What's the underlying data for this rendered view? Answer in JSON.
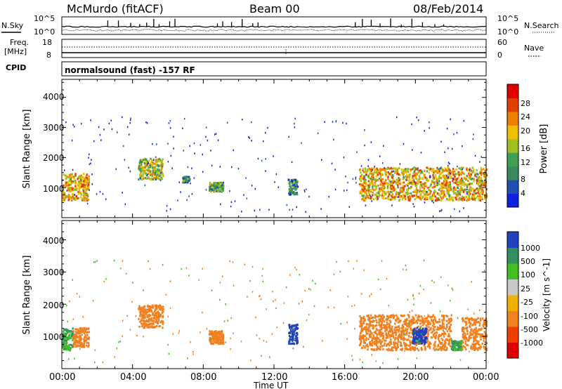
{
  "header": {
    "station": "McMurdo (fitACF)",
    "beam": "Beam 00",
    "date": "08/Feb/2014"
  },
  "noise_panel": {
    "left_label": "N.Sky",
    "right_label": "N.Search",
    "tick_top": "10^5",
    "tick_bottom": "10^0",
    "right_tick_top": "10^5",
    "right_tick_bottom": "10^0"
  },
  "freq_panel": {
    "left_label_1": "Freq.",
    "left_label_2": "[MHz]",
    "right_label": "Nave",
    "left_tick_top": "18",
    "left_tick_bottom": "8",
    "right_tick_top": "60",
    "right_tick_bottom": "0"
  },
  "cpid": {
    "label": "CPID",
    "text": "normalsound (fast) -157 RF"
  },
  "time_axis": {
    "title": "Time UT",
    "ticks": [
      "00:00",
      "04:00",
      "08:00",
      "12:00",
      "16:00",
      "20:00",
      "00:00"
    ]
  },
  "colors": {
    "power_scale": [
      "#1020e0",
      "#2050b0",
      "#3a8a60",
      "#40a050",
      "#a0c020",
      "#f0c000",
      "#f08000",
      "#e04000",
      "#e00000"
    ],
    "velocity_scale": [
      "#e00000",
      "#f04000",
      "#f08020",
      "#f0b000",
      "#c8c8c8",
      "#40c020",
      "#309060",
      "#2040c0"
    ]
  },
  "chart_data": [
    {
      "type": "heatmap",
      "panel": "power",
      "ylabel": "Slant Range [km]",
      "yticks": [
        "1000",
        "2000",
        "3000",
        "4000"
      ],
      "ylim": [
        0,
        4600
      ],
      "xlim_hours": [
        0,
        24
      ],
      "colorbar_label": "Power [dB]",
      "colorbar_ticks": [
        "4",
        "8",
        "12",
        "16",
        "20",
        "24",
        "28"
      ],
      "scatter_regions_approx": [
        {
          "t_start_hr": 0.0,
          "t_end_hr": 1.5,
          "range_km": [
            600,
            1500
          ],
          "level_dB": 20
        },
        {
          "t_start_hr": 4.3,
          "t_end_hr": 5.7,
          "range_km": [
            1300,
            2000
          ],
          "level_dB": 16
        },
        {
          "t_start_hr": 6.8,
          "t_end_hr": 7.2,
          "range_km": [
            1200,
            1400
          ],
          "level_dB": 10
        },
        {
          "t_start_hr": 8.3,
          "t_end_hr": 9.1,
          "range_km": [
            900,
            1200
          ],
          "level_dB": 12
        },
        {
          "t_start_hr": 12.8,
          "t_end_hr": 13.3,
          "range_km": [
            800,
            1300
          ],
          "level_dB": 8
        },
        {
          "t_start_hr": 16.8,
          "t_end_hr": 24.0,
          "range_km": [
            600,
            1700
          ],
          "level_dB": 20
        }
      ]
    },
    {
      "type": "heatmap",
      "panel": "velocity",
      "ylabel": "Slant Range [km]",
      "yticks": [
        "1000",
        "2000",
        "3000",
        "4000"
      ],
      "ylim": [
        0,
        4600
      ],
      "xlim_hours": [
        0,
        24
      ],
      "colorbar_label": "Velocity [m s^-1]",
      "colorbar_ticks": [
        "-1000",
        "-500",
        "-100",
        "-25",
        "25",
        "100",
        "500",
        "1000"
      ],
      "scatter_regions_approx": [
        {
          "t_start_hr": 0.0,
          "t_end_hr": 0.6,
          "range_km": [
            600,
            1300
          ],
          "velocity_ms": 100
        },
        {
          "t_start_hr": 0.6,
          "t_end_hr": 1.5,
          "range_km": [
            700,
            1300
          ],
          "velocity_ms": -300
        },
        {
          "t_start_hr": 4.3,
          "t_end_hr": 5.7,
          "range_km": [
            1300,
            2000
          ],
          "velocity_ms": -300
        },
        {
          "t_start_hr": 8.3,
          "t_end_hr": 9.1,
          "range_km": [
            800,
            1200
          ],
          "velocity_ms": -300
        },
        {
          "t_start_hr": 12.8,
          "t_end_hr": 13.3,
          "range_km": [
            800,
            1400
          ],
          "velocity_ms": 800
        },
        {
          "t_start_hr": 16.8,
          "t_end_hr": 22.0,
          "range_km": [
            600,
            1700
          ],
          "velocity_ms": -300
        },
        {
          "t_start_hr": 19.8,
          "t_end_hr": 20.6,
          "range_km": [
            800,
            1300
          ],
          "velocity_ms": 800
        },
        {
          "t_start_hr": 22.0,
          "t_end_hr": 22.6,
          "range_km": [
            600,
            900
          ],
          "velocity_ms": 100
        },
        {
          "t_start_hr": 22.6,
          "t_end_hr": 24.0,
          "range_km": [
            600,
            1600
          ],
          "velocity_ms": -300
        }
      ]
    }
  ]
}
